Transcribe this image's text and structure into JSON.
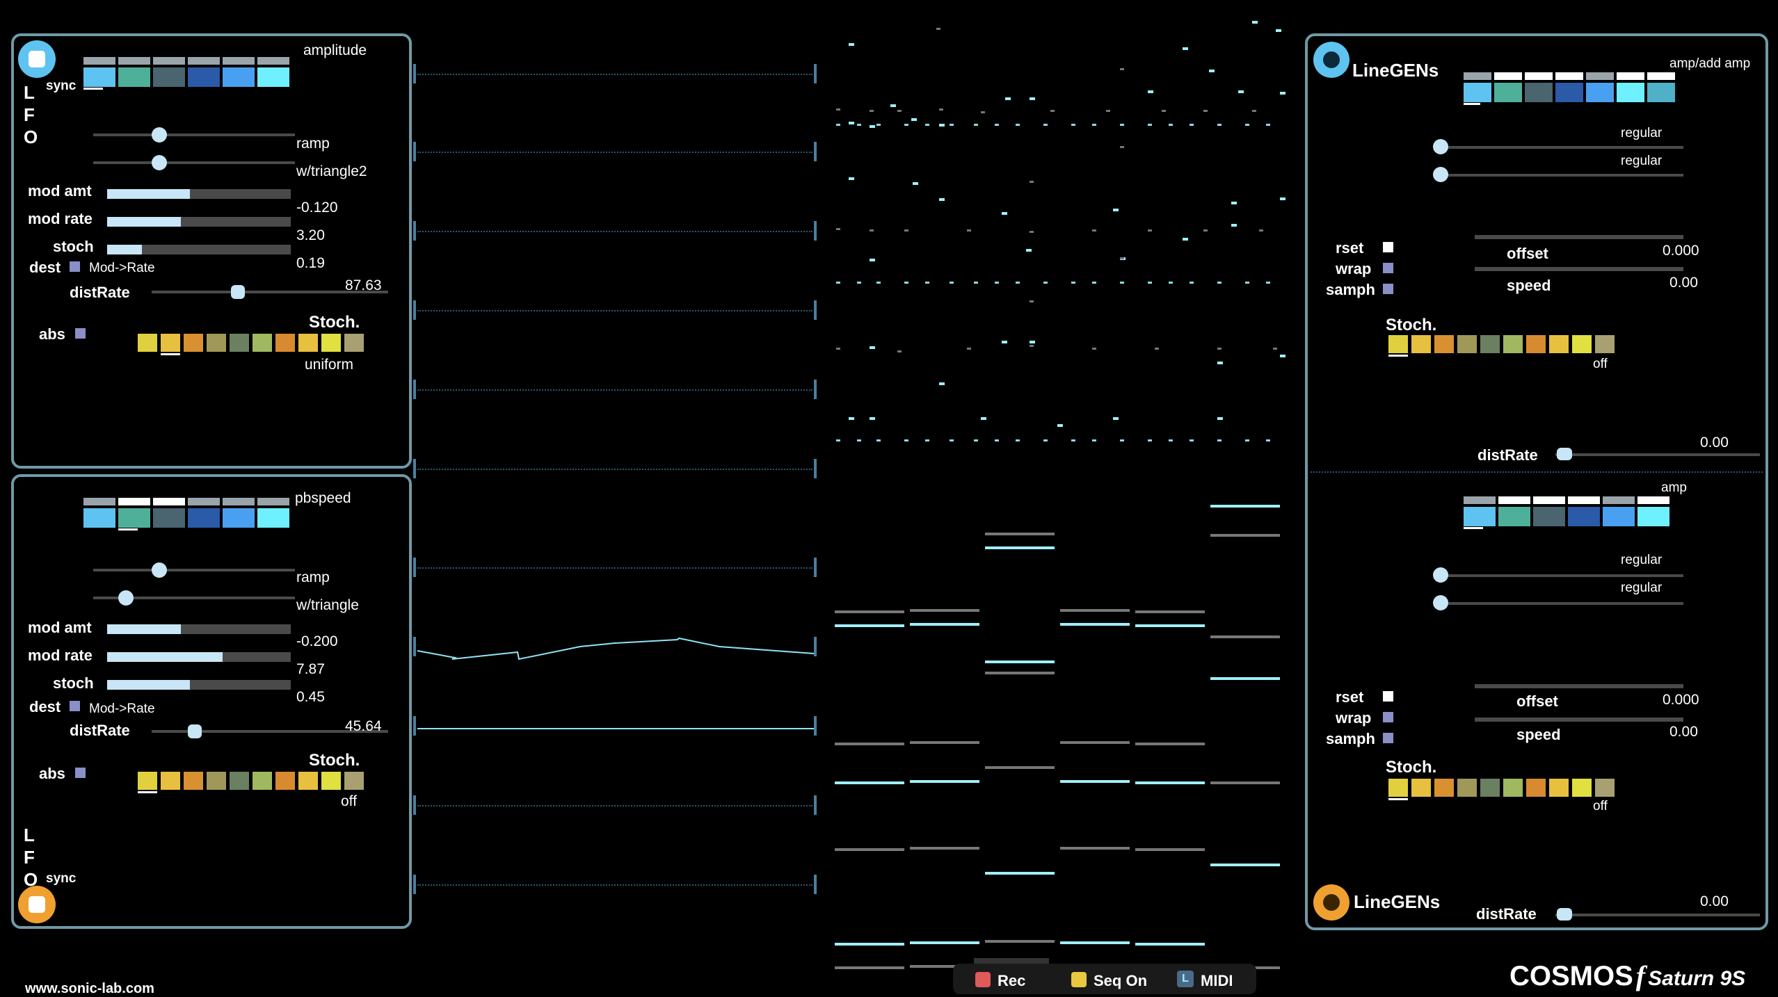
{
  "footer": {
    "url": "www.sonic-lab.com",
    "brand": "COSMOS",
    "brand_f": "f",
    "brand_sub": "Saturn 9S"
  },
  "transport": {
    "rec": "Rec",
    "seq": "Seq On",
    "midi": "MIDI",
    "midi_icon": "L"
  },
  "lfo_top": {
    "letters": [
      "L",
      "F",
      "O"
    ],
    "sync": "sync",
    "target": "amplitude",
    "shape1": "ramp",
    "shape2": "w/triangle2",
    "mod_amt_label": "mod amt",
    "mod_amt_value": "-0.120",
    "mod_amt": 0.45,
    "mod_rate_label": "mod rate",
    "mod_rate_value": "3.20",
    "mod_rate": 0.4,
    "stoch_label": "stoch",
    "stoch_value": "0.19",
    "stoch": 0.19,
    "dest_label": "dest",
    "dest_value": "Mod->Rate",
    "distrate_label": "distRate",
    "distrate_value": "87.63",
    "abs_label": "abs",
    "stoch_title": "Stoch.",
    "stoch_mode": "uniform"
  },
  "lfo_bottom": {
    "letters": [
      "L",
      "F",
      "O"
    ],
    "sync": "sync",
    "target": "pbspeed",
    "shape1": "ramp",
    "shape2": "w/triangle",
    "mod_amt_label": "mod amt",
    "mod_amt_value": "-0.200",
    "mod_amt": 0.4,
    "mod_rate_label": "mod rate",
    "mod_rate_value": "7.87",
    "mod_rate": 0.63,
    "stoch_label": "stoch",
    "stoch_value": "0.45",
    "stoch": 0.45,
    "dest_label": "dest",
    "dest_value": "Mod->Rate",
    "distrate_label": "distRate",
    "distrate_value": "45.64",
    "abs_label": "abs",
    "stoch_title": "Stoch.",
    "stoch_mode": "off"
  },
  "linegen_top": {
    "title": "LineGENs",
    "target": "amp/add amp",
    "reg1": "regular",
    "reg2": "regular",
    "rset": "rset",
    "wrap": "wrap",
    "samph": "samph",
    "offset_label": "offset",
    "offset_value": "0.000",
    "speed_label": "speed",
    "speed_value": "0.00",
    "stoch_title": "Stoch.",
    "stoch_mode": "off",
    "distrate_label": "distRate",
    "distrate_value": "0.00"
  },
  "linegen_bottom": {
    "title": "LineGENs",
    "target": "amp",
    "reg1": "regular",
    "reg2": "regular",
    "rset": "rset",
    "wrap": "wrap",
    "samph": "samph",
    "offset_label": "offset",
    "offset_value": "0.000",
    "speed_label": "speed",
    "speed_value": "0.00",
    "stoch_title": "Stoch.",
    "stoch_mode": "off",
    "distrate_label": "distRate",
    "distrate_value": "0.00"
  },
  "colors": {
    "panel_border": "#6f9aa6",
    "slider": "#c8e6f5",
    "accent_blue": "#5ec3f0",
    "accent_orange": "#f0a030",
    "seq_cyan": "#9ff0ff",
    "rec_red": "#e05a5a",
    "seq_yellow": "#e8c840"
  },
  "swatch_colors": [
    "#5ec3f0",
    "#4fb09a",
    "#4a6470",
    "#2a5aa8",
    "#4aa0f0",
    "#6ef0ff"
  ],
  "stoch_colors": [
    "#e0d040",
    "#e8c040",
    "#d89030",
    "#a09858",
    "#6a8060",
    "#a0b860",
    "#d88a30",
    "#e8c040",
    "#e0e040",
    "#a8a070"
  ]
}
